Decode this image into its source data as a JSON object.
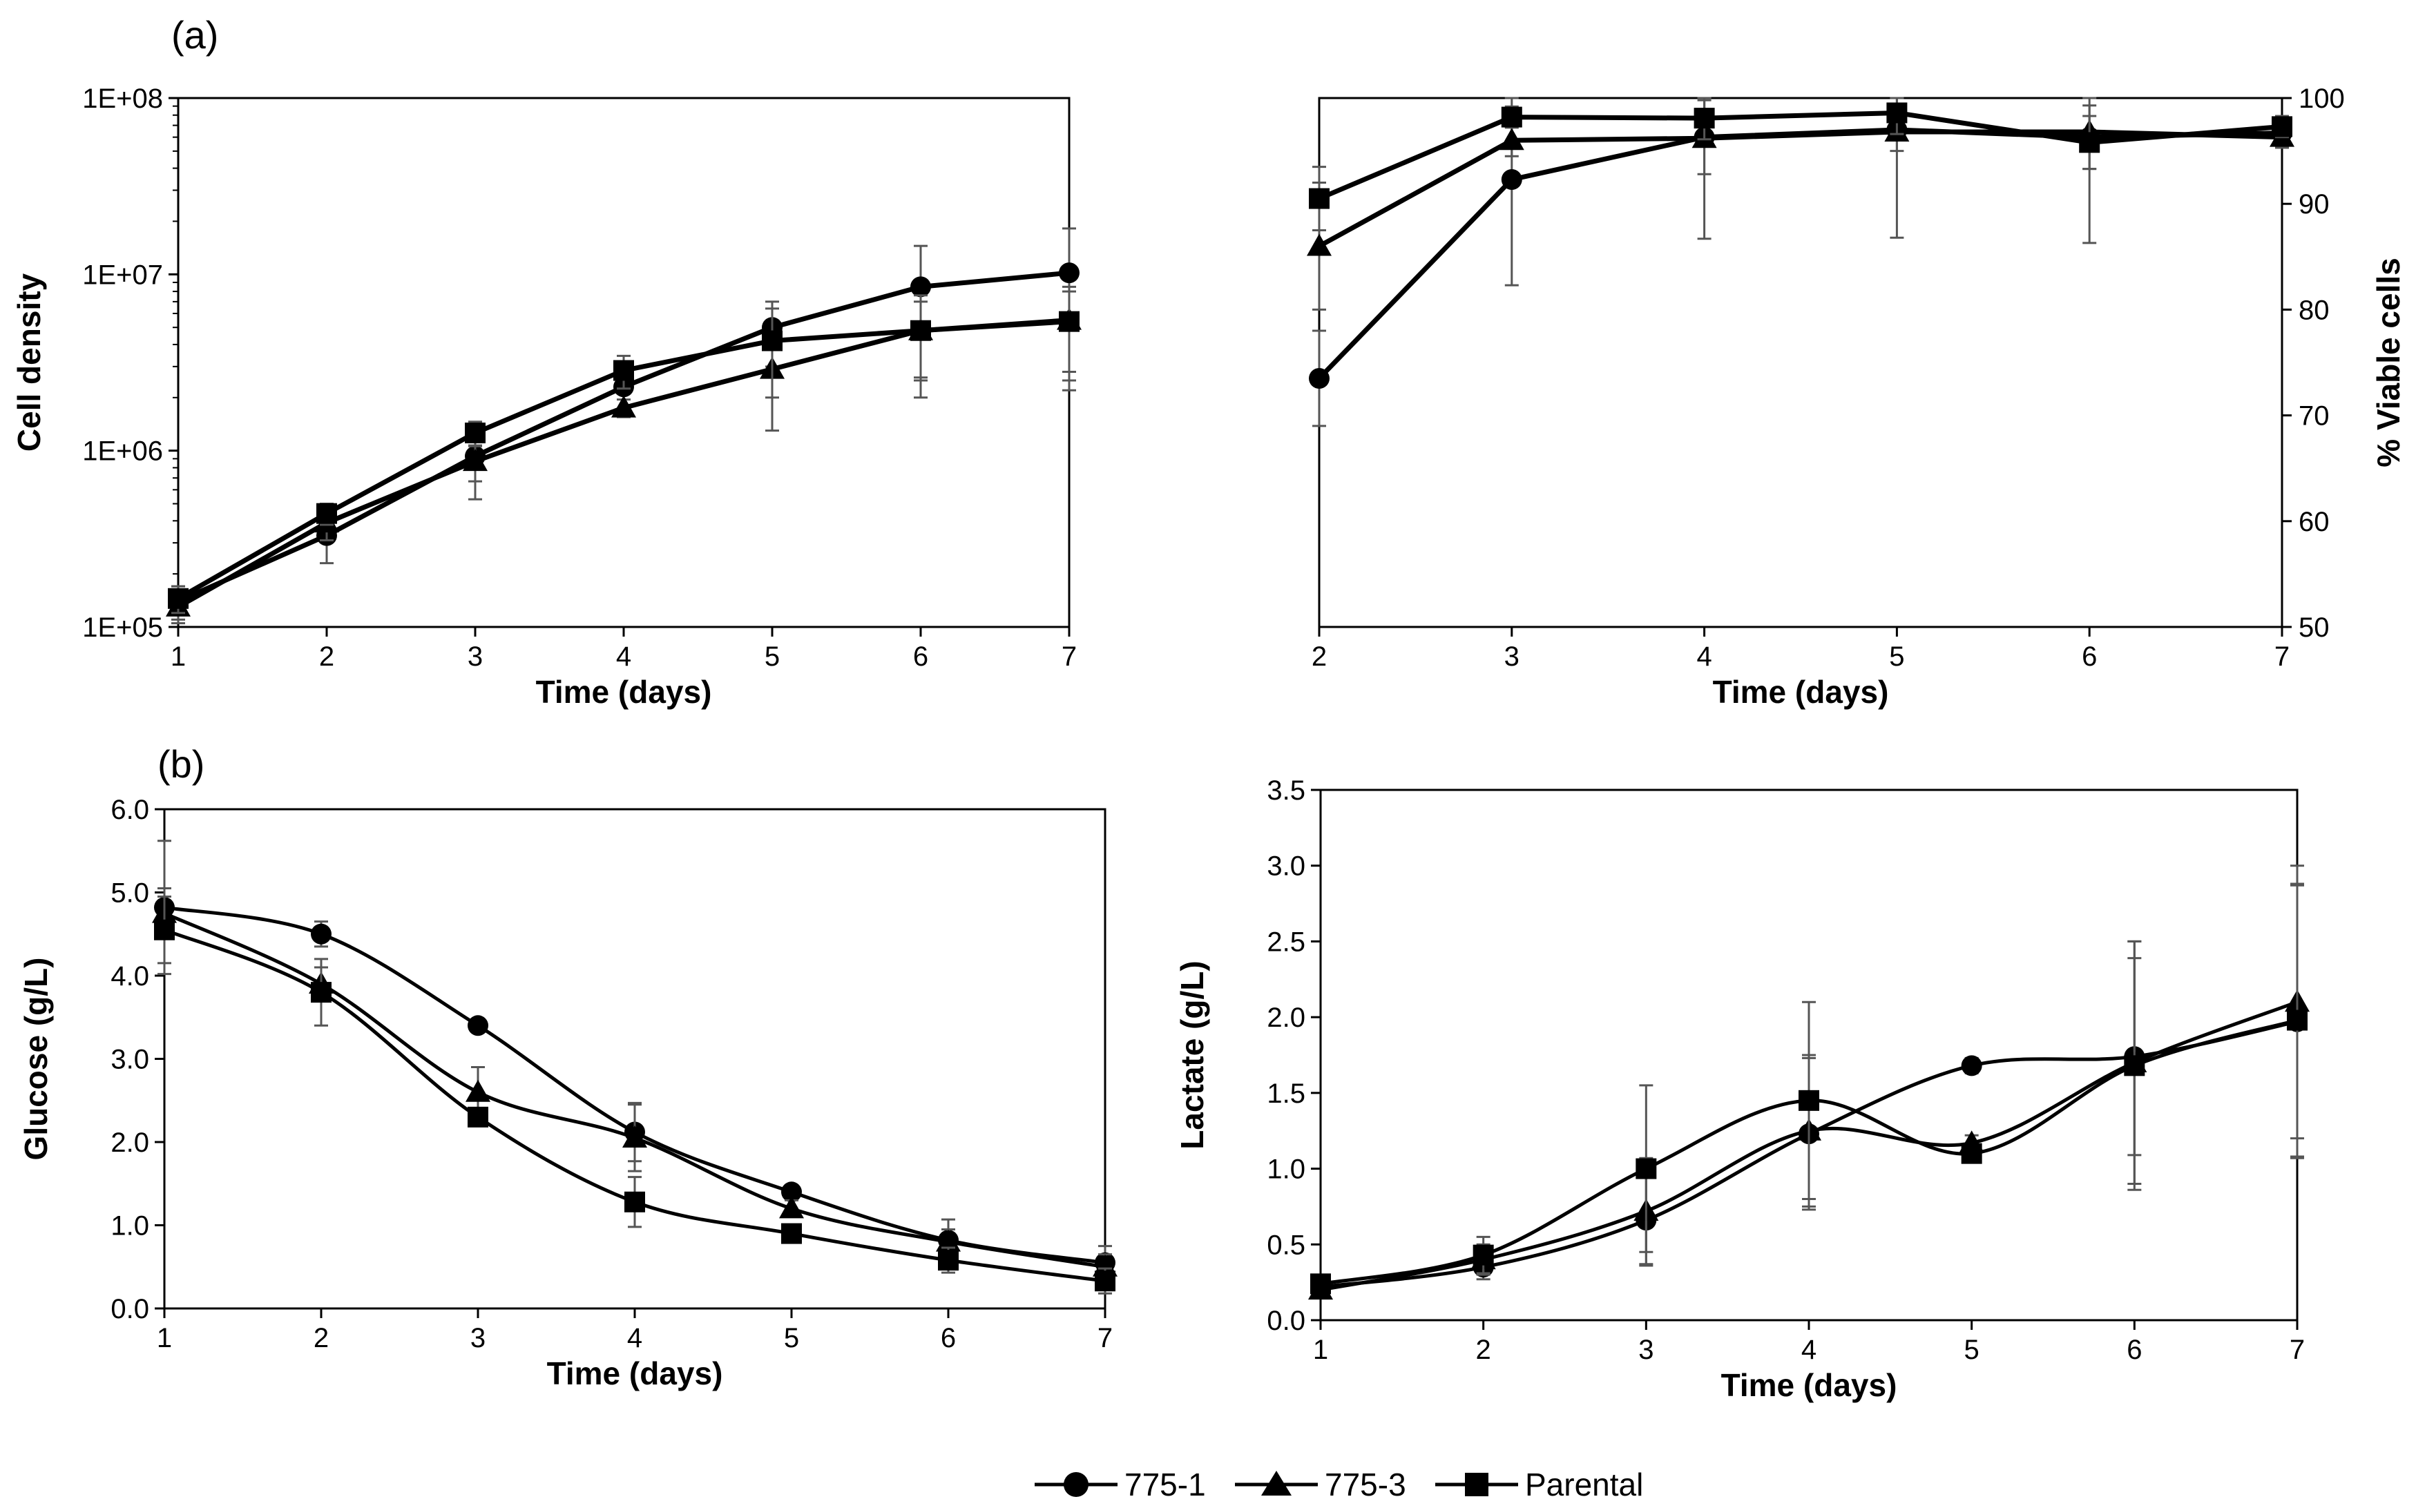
{
  "panel_labels": [
    "(a)",
    "(b)"
  ],
  "series_styles": [
    {
      "name": "775-1",
      "marker": "circle"
    },
    {
      "name": "775-3",
      "marker": "triangle"
    },
    {
      "name": "Parental",
      "marker": "square"
    }
  ],
  "colors": {
    "line": "#000000",
    "errorbar": "#555555",
    "background": "#ffffff"
  },
  "legend": {
    "position": "bottom-center",
    "entries": [
      "775-1",
      "775-3",
      "Parental"
    ]
  },
  "chart_data": [
    {
      "id": "cell-density",
      "type": "line",
      "scale": "log",
      "xlabel": "Time (days)",
      "ylabel": "Cell density",
      "y_side": "left",
      "xlim": [
        1,
        7
      ],
      "ylim": [
        100000,
        100000000
      ],
      "xticks": [
        1,
        2,
        3,
        4,
        5,
        6,
        7
      ],
      "yticks": [
        100000,
        1000000,
        10000000,
        100000000
      ],
      "ytick_labels": [
        "1E+05",
        "1E+06",
        "1E+07",
        "1E+08"
      ],
      "grid": false,
      "x": [
        1,
        2,
        3,
        4,
        5,
        6,
        7
      ],
      "series": [
        {
          "name": "775-1",
          "values": [
            140000,
            330000,
            930000,
            2300000,
            5000000,
            8500000,
            10200000
          ],
          "errors": [
            30000,
            100000,
            400000,
            600000,
            2000000,
            6000000,
            8000000
          ]
        },
        {
          "name": "775-3",
          "values": [
            130000,
            390000,
            870000,
            1750000,
            2900000,
            4800000,
            5500000
          ],
          "errors": [
            25000,
            80000,
            200000,
            200000,
            1600000,
            2800000,
            3000000
          ]
        },
        {
          "name": "Parental",
          "values": [
            145000,
            440000,
            1260000,
            2850000,
            4200000,
            4800000,
            5400000
          ],
          "errors": [
            25000,
            60000,
            200000,
            600000,
            2200000,
            2200000,
            2600000
          ]
        }
      ]
    },
    {
      "id": "viability",
      "type": "line",
      "scale": "linear",
      "xlabel": "Time (days)",
      "ylabel": "% Viable cells",
      "y_side": "right",
      "xlim": [
        2,
        7
      ],
      "ylim": [
        50,
        100
      ],
      "xticks": [
        2,
        3,
        4,
        5,
        6,
        7
      ],
      "yticks": [
        50,
        60,
        70,
        80,
        90,
        100
      ],
      "grid": false,
      "x": [
        2,
        3,
        4,
        5,
        6,
        7
      ],
      "series": [
        {
          "name": "775-1",
          "values": [
            73.5,
            92.3,
            96.3,
            97.0,
            96.3,
            96.7
          ],
          "errors": [
            4.5,
            10,
            3.5,
            2.0,
            3.0,
            1.0
          ]
        },
        {
          "name": "775-3",
          "values": [
            86.0,
            96.0,
            96.2,
            96.8,
            96.8,
            96.3
          ],
          "errors": [
            6.0,
            1.5,
            9.5,
            10.0,
            10.5,
            1.0
          ]
        },
        {
          "name": "Parental",
          "values": [
            90.5,
            98.2,
            98.1,
            98.6,
            95.8,
            97.3
          ],
          "errors": [
            3.0,
            1.0,
            2.0,
            2.0,
            2.5,
            1.0
          ]
        }
      ]
    },
    {
      "id": "glucose",
      "type": "line",
      "scale": "linear",
      "smooth": true,
      "xlabel": "Time (days)",
      "ylabel": "Glucose (g/L)",
      "y_side": "left",
      "xlim": [
        1,
        7
      ],
      "ylim": [
        0,
        6
      ],
      "xticks": [
        1,
        2,
        3,
        4,
        5,
        6,
        7
      ],
      "yticks": [
        0,
        1,
        2,
        3,
        4,
        5,
        6
      ],
      "ytick_labels": [
        "0.0",
        "1.0",
        "2.0",
        "3.0",
        "4.0",
        "5.0",
        "6.0"
      ],
      "grid": false,
      "x": [
        1,
        2,
        3,
        4,
        5,
        6,
        7
      ],
      "series": [
        {
          "name": "775-1",
          "values": [
            4.82,
            4.5,
            3.4,
            2.12,
            1.4,
            0.82,
            0.55
          ],
          "errors": [
            0.8,
            0.15,
            0.05,
            0.35,
            0.05,
            0.25,
            0.2
          ]
        },
        {
          "name": "775-3",
          "values": [
            4.75,
            3.9,
            2.6,
            2.05,
            1.2,
            0.8,
            0.5
          ],
          "errors": [
            0.3,
            0.2,
            0.3,
            0.4,
            0.1,
            0.15,
            0.15
          ]
        },
        {
          "name": "Parental",
          "values": [
            4.55,
            3.8,
            2.3,
            1.28,
            0.9,
            0.58,
            0.33
          ],
          "errors": [
            0.4,
            0.4,
            0.05,
            0.3,
            0.05,
            0.15,
            0.15
          ]
        }
      ]
    },
    {
      "id": "lactate",
      "type": "line",
      "scale": "linear",
      "smooth": true,
      "xlabel": "Time (days)",
      "ylabel": "Lactate (g/L)",
      "y_side": "left",
      "xlim": [
        1,
        7
      ],
      "ylim": [
        0,
        3.5
      ],
      "xticks": [
        1,
        2,
        3,
        4,
        5,
        6,
        7
      ],
      "yticks": [
        0,
        0.5,
        1,
        1.5,
        2,
        2.5,
        3,
        3.5
      ],
      "ytick_labels": [
        "0.0",
        "0.5",
        "1.0",
        "1.5",
        "2.0",
        "2.5",
        "3.0",
        "3.5"
      ],
      "grid": false,
      "x": [
        1,
        2,
        3,
        4,
        5,
        6,
        7
      ],
      "series": [
        {
          "name": "775-1",
          "values": [
            0.22,
            0.35,
            0.66,
            1.23,
            1.68,
            1.74,
            1.97
          ],
          "errors": [
            0.05,
            0.08,
            0.3,
            0.5,
            0.05,
            0.65,
            0.9
          ]
        },
        {
          "name": "775-3",
          "values": [
            0.2,
            0.4,
            0.72,
            1.25,
            1.17,
            1.7,
            2.1
          ],
          "errors": [
            0.05,
            0.1,
            0.35,
            0.5,
            0.05,
            0.8,
            0.9
          ]
        },
        {
          "name": "Parental",
          "values": [
            0.24,
            0.43,
            1.0,
            1.45,
            1.1,
            1.68,
            1.98
          ],
          "errors": [
            0.05,
            0.12,
            0.55,
            0.65,
            0.05,
            0.82,
            0.9
          ]
        }
      ]
    }
  ]
}
